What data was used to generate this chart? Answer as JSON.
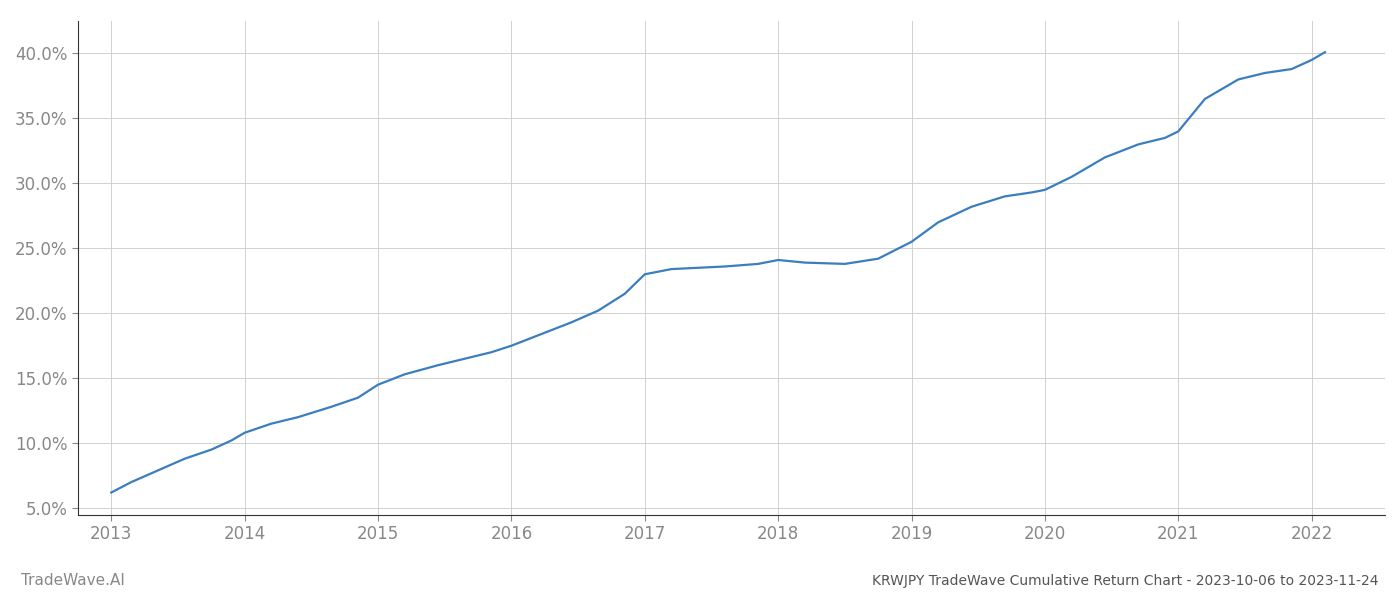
{
  "title": "KRWJPY TradeWave Cumulative Return Chart - 2023-10-06 to 2023-11-24",
  "watermark": "TradeWave.AI",
  "x_values": [
    2013.0,
    2013.15,
    2013.35,
    2013.55,
    2013.75,
    2013.9,
    2014.0,
    2014.2,
    2014.4,
    2014.65,
    2014.85,
    2015.0,
    2015.2,
    2015.45,
    2015.65,
    2015.85,
    2016.0,
    2016.2,
    2016.45,
    2016.65,
    2016.85,
    2017.0,
    2017.1,
    2017.2,
    2017.4,
    2017.6,
    2017.85,
    2018.0,
    2018.2,
    2018.5,
    2018.75,
    2019.0,
    2019.2,
    2019.45,
    2019.7,
    2019.9,
    2020.0,
    2020.2,
    2020.45,
    2020.7,
    2020.9,
    2021.0,
    2021.2,
    2021.45,
    2021.65,
    2021.85,
    2022.0,
    2022.1
  ],
  "y_values": [
    6.2,
    7.0,
    7.9,
    8.8,
    9.5,
    10.2,
    10.8,
    11.5,
    12.0,
    12.8,
    13.5,
    14.5,
    15.3,
    16.0,
    16.5,
    17.0,
    17.5,
    18.3,
    19.3,
    20.2,
    21.5,
    23.0,
    23.2,
    23.4,
    23.5,
    23.6,
    23.8,
    24.1,
    23.9,
    23.8,
    24.2,
    25.5,
    27.0,
    28.2,
    29.0,
    29.3,
    29.5,
    30.5,
    32.0,
    33.0,
    33.5,
    34.0,
    36.5,
    38.0,
    38.5,
    38.8,
    39.5,
    40.1
  ],
  "line_color": "#3a7ebf",
  "background_color": "#ffffff",
  "grid_color": "#cccccc",
  "xlim": [
    2012.75,
    2022.55
  ],
  "ylim": [
    4.5,
    42.5
  ],
  "yticks": [
    5.0,
    10.0,
    15.0,
    20.0,
    25.0,
    30.0,
    35.0,
    40.0
  ],
  "xticks": [
    2013,
    2014,
    2015,
    2016,
    2017,
    2018,
    2019,
    2020,
    2021,
    2022
  ],
  "tick_label_color": "#888888",
  "title_color": "#555555",
  "watermark_color": "#888888",
  "line_width": 1.6
}
